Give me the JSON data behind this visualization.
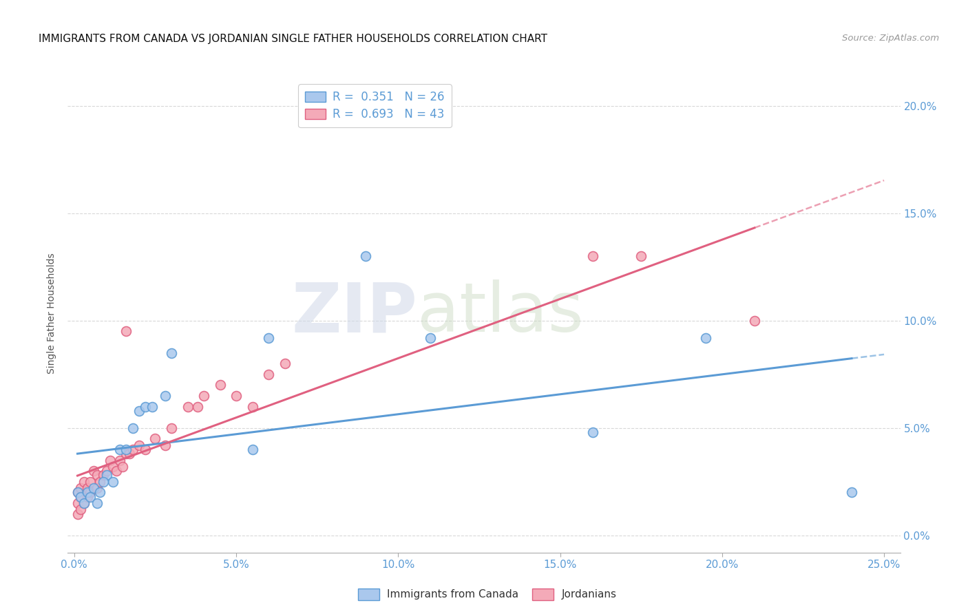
{
  "title": "IMMIGRANTS FROM CANADA VS JORDANIAN SINGLE FATHER HOUSEHOLDS CORRELATION CHART",
  "source": "Source: ZipAtlas.com",
  "xlim": [
    -0.002,
    0.255
  ],
  "ylim": [
    -0.008,
    0.215
  ],
  "ylabel": "Single Father Households",
  "legend_label1": "Immigrants from Canada",
  "legend_label2": "Jordanians",
  "R1": "0.351",
  "N1": "26",
  "R2": "0.693",
  "N2": "43",
  "color_canada": "#aac8ed",
  "color_jordan": "#f4aab8",
  "color_canada_line": "#5b9bd5",
  "color_jordan_line": "#e06080",
  "watermark_zip": "ZIP",
  "watermark_atlas": "atlas",
  "canada_x": [
    0.001,
    0.002,
    0.003,
    0.004,
    0.005,
    0.006,
    0.007,
    0.008,
    0.01,
    0.012,
    0.014,
    0.018,
    0.02,
    0.022,
    0.024,
    0.028,
    0.03,
    0.055,
    0.06,
    0.09,
    0.11,
    0.16,
    0.195,
    0.24,
    0.009,
    0.016
  ],
  "canada_y": [
    0.02,
    0.018,
    0.015,
    0.02,
    0.018,
    0.022,
    0.015,
    0.02,
    0.028,
    0.025,
    0.04,
    0.05,
    0.058,
    0.06,
    0.06,
    0.065,
    0.085,
    0.04,
    0.092,
    0.13,
    0.092,
    0.048,
    0.092,
    0.02,
    0.025,
    0.04
  ],
  "jordan_x": [
    0.001,
    0.001,
    0.001,
    0.002,
    0.002,
    0.002,
    0.003,
    0.003,
    0.004,
    0.004,
    0.005,
    0.005,
    0.006,
    0.007,
    0.007,
    0.008,
    0.009,
    0.01,
    0.011,
    0.012,
    0.013,
    0.014,
    0.015,
    0.016,
    0.017,
    0.018,
    0.02,
    0.022,
    0.025,
    0.028,
    0.03,
    0.035,
    0.038,
    0.04,
    0.045,
    0.05,
    0.055,
    0.06,
    0.065,
    0.016,
    0.16,
    0.175,
    0.21
  ],
  "jordan_y": [
    0.01,
    0.015,
    0.02,
    0.012,
    0.018,
    0.022,
    0.015,
    0.025,
    0.018,
    0.022,
    0.02,
    0.025,
    0.03,
    0.022,
    0.028,
    0.025,
    0.028,
    0.03,
    0.035,
    0.032,
    0.03,
    0.035,
    0.032,
    0.038,
    0.038,
    0.04,
    0.042,
    0.04,
    0.045,
    0.042,
    0.05,
    0.06,
    0.06,
    0.065,
    0.07,
    0.065,
    0.06,
    0.075,
    0.08,
    0.095,
    0.13,
    0.13,
    0.1
  ],
  "xtick_vals": [
    0.0,
    0.05,
    0.1,
    0.15,
    0.2,
    0.25
  ],
  "ytick_vals": [
    0.0,
    0.05,
    0.1,
    0.15,
    0.2
  ],
  "tick_color": "#5b9bd5",
  "grid_color": "#d8d8d8",
  "title_fontsize": 11,
  "tick_fontsize": 11,
  "ylabel_fontsize": 10
}
